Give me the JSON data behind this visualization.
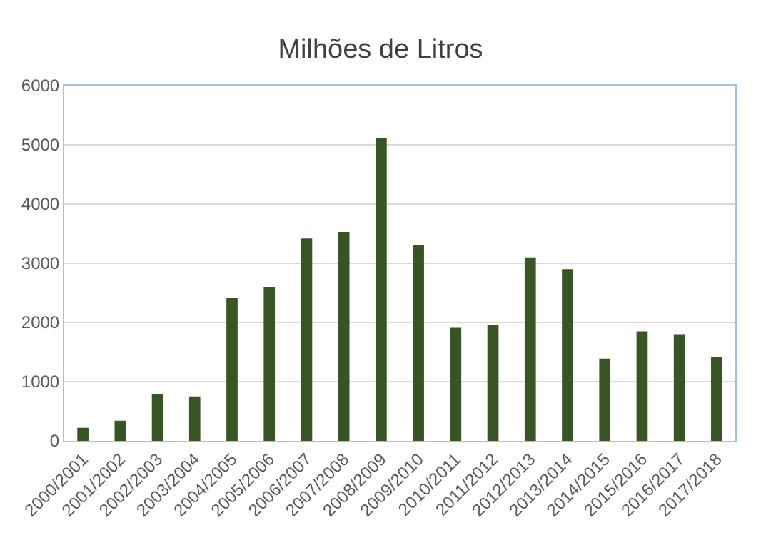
{
  "chart_data": {
    "type": "bar",
    "title": "Milhões de Litros",
    "categories": [
      "2000/2001",
      "2001/2002",
      "2002/2003",
      "2003/2004",
      "2004/2005",
      "2005/2006",
      "2006/2007",
      "2007/2008",
      "2008/2009",
      "2009/2010",
      "2010/2011",
      "2011/2012",
      "2012/2013",
      "2013/2014",
      "2014/2015",
      "2015/2016",
      "2016/2017",
      "2017/2018"
    ],
    "values": [
      220,
      340,
      790,
      750,
      2410,
      2590,
      3420,
      3530,
      5110,
      3300,
      1910,
      1960,
      3100,
      2900,
      1390,
      1850,
      1800,
      1420
    ],
    "color": "#375623",
    "ylim": [
      0,
      6000
    ],
    "yticks": [
      0,
      1000,
      2000,
      3000,
      4000,
      5000,
      6000
    ],
    "grid": "y"
  }
}
